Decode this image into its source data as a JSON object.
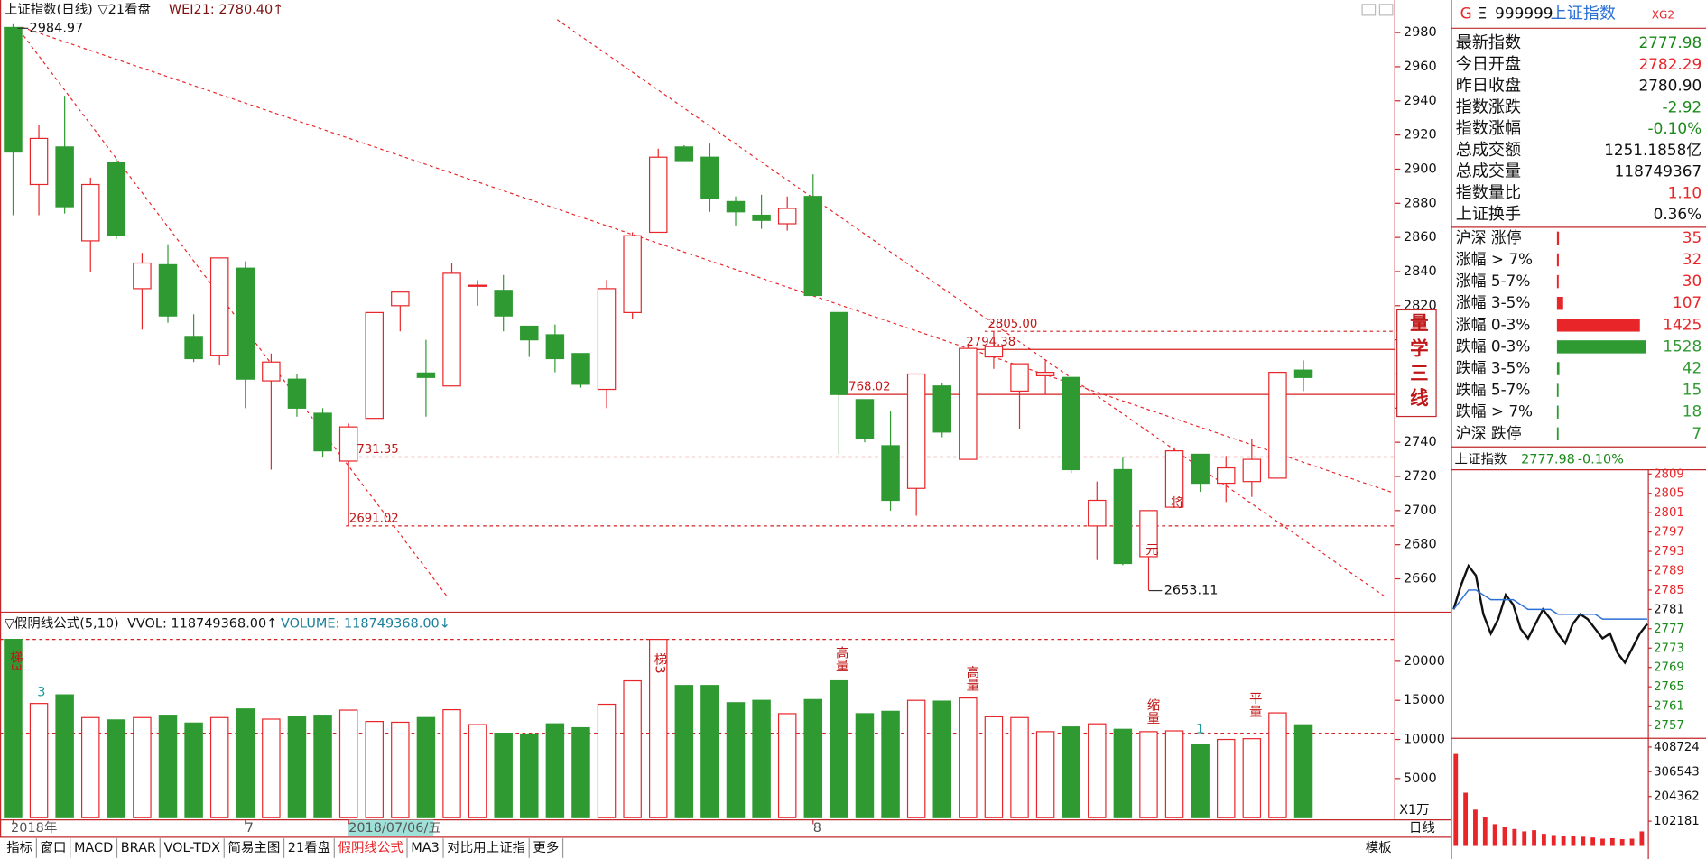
{
  "header": {
    "title": "上证指数(日线)",
    "period": "▽21看盘",
    "indicator": "WEI21: 2780.40↑"
  },
  "chart_data": [
    {
      "type": "candlestick",
      "categories": [
        "2018年",
        null,
        null,
        null,
        null,
        null,
        null,
        null,
        null,
        "7",
        null,
        null,
        null,
        "2018/07/06/五",
        null,
        null,
        null,
        null,
        null,
        null,
        null,
        null,
        null,
        null,
        null,
        null,
        null,
        null,
        null,
        null,
        null,
        "8",
        null,
        null,
        null,
        null,
        null,
        null,
        null,
        null,
        null,
        null,
        null,
        null,
        null,
        null,
        null,
        null,
        null,
        null,
        null
      ],
      "open": [
        2983,
        2891,
        2913,
        2858,
        2904,
        2830,
        2844,
        2802,
        2791,
        2842,
        2776,
        2777,
        2757,
        2729,
        2754,
        2820,
        2780.6,
        2773,
        2832,
        2829,
        2808,
        2803,
        2792,
        2771,
        2816,
        2863,
        2913,
        2907,
        2881,
        2873,
        2868,
        2884,
        2816,
        2765,
        2738,
        2713,
        2773,
        2730,
        2790,
        2770,
        2779,
        2778,
        2691,
        2724,
        2673,
        2702,
        2733,
        2716,
        2717,
        2719,
        2782.29
      ],
      "high": [
        2984.97,
        2926,
        2943,
        2895,
        2906,
        2851,
        2856,
        2815,
        2848,
        2846,
        2792,
        2780,
        2760,
        2751,
        2816,
        2828,
        2800,
        2845,
        2835,
        2838,
        2808,
        2809,
        2792,
        2835,
        2863,
        2912,
        2914,
        2915,
        2884,
        2885,
        2884,
        2897,
        2816,
        2765,
        2758,
        2780,
        2775,
        2797,
        2805,
        2786,
        2788,
        2778,
        2717,
        2731,
        2700,
        2737,
        2733,
        2732,
        2742,
        2781,
        2788
      ],
      "low": [
        2873,
        2873,
        2874,
        2840,
        2859,
        2806,
        2810,
        2787,
        2785,
        2760,
        2724,
        2755,
        2731,
        2691,
        2754,
        2805,
        2755,
        2773,
        2820,
        2805,
        2790,
        2781,
        2772,
        2760,
        2812,
        2863,
        2905,
        2875,
        2867,
        2865,
        2864,
        2826,
        2733,
        2740,
        2700,
        2697,
        2743,
        2730,
        2783,
        2748,
        2768,
        2722,
        2671,
        2668,
        2653.11,
        2702,
        2711,
        2705,
        2708,
        2719,
        2770
      ],
      "close": [
        2910,
        2918,
        2878,
        2891,
        2861,
        2845,
        2814,
        2789,
        2848,
        2777,
        2787,
        2760,
        2735,
        2749,
        2816,
        2828,
        2778,
        2839,
        2832,
        2814,
        2800,
        2789,
        2774,
        2830,
        2861,
        2907,
        2905,
        2883,
        2875,
        2870,
        2877,
        2826,
        2768,
        2742,
        2706,
        2780,
        2746,
        2795,
        2796,
        2786,
        2781,
        2724,
        2706,
        2669,
        2700,
        2735,
        2716,
        2725,
        2730,
        2781,
        2777.98
      ],
      "up_color": "#e8262a",
      "down_color": "#2f9a32",
      "ylim": [
        2648,
        2988
      ],
      "yticks": [
        2660,
        2680,
        2700,
        2720,
        2740,
        2760,
        2780,
        2800,
        2820,
        2840,
        2860,
        2880,
        2900,
        2920,
        2940,
        2960,
        2980
      ],
      "levels": [
        {
          "value": 2805,
          "label": "2805.00",
          "dashed": true
        },
        {
          "value": 2794.38,
          "label": "2794.38",
          "dashed": false
        },
        {
          "value": 2768.02,
          "label": "2768.02",
          "dashed": false
        },
        {
          "value": 2731.35,
          "label": "2731.35",
          "dashed": true
        },
        {
          "value": 2691.02,
          "label": "2691.02",
          "dashed": true
        }
      ],
      "annotations": [
        "元",
        "将"
      ],
      "box_label": "量学三线"
    },
    {
      "type": "bar",
      "title": "▽假阴线公式(5,10)",
      "vvol": "VVOL: 118749368.00↑",
      "volume": "VOLUME: 118749368.00↓",
      "values": [
        22800,
        14600,
        15700,
        12800,
        12500,
        12800,
        13100,
        12100,
        12800,
        13900,
        12600,
        12900,
        13100,
        13750,
        12300,
        12200,
        12800,
        13800,
        11900,
        10800,
        10700,
        12000,
        11500,
        14500,
        17500,
        22800,
        16900,
        16900,
        14700,
        15000,
        13300,
        15100,
        17500,
        13300,
        13600,
        15000,
        14900,
        15300,
        12900,
        12800,
        11000,
        11600,
        12000,
        11300,
        11000,
        11100,
        9400,
        10000,
        10100,
        13400,
        11875
      ],
      "ylim": [
        0,
        26000
      ],
      "yticks": [
        5000,
        10000,
        15000,
        20000
      ],
      "unit_label": "X1万",
      "hlines": [
        22800,
        10800
      ],
      "annotations": [
        "梯3",
        "3",
        "梯3",
        "高量",
        "高量",
        "缩量",
        "1",
        "平量"
      ]
    },
    {
      "type": "line",
      "title": "上证指数",
      "last": "2777.98",
      "change": "-0.10%",
      "series": [
        {
          "color": "#111111",
          "values": [
            2781,
            2786,
            2790,
            2788,
            2780,
            2776,
            2779,
            2784,
            2782,
            2777,
            2775,
            2778,
            2781,
            2779,
            2776,
            2774,
            2778,
            2780,
            2779,
            2777,
            2775,
            2776,
            2772,
            2770,
            2773,
            2776,
            2778
          ]
        },
        {
          "color": "#2a6fd6",
          "values": [
            2781,
            2783,
            2785,
            2785,
            2784,
            2783,
            2783,
            2783,
            2783,
            2782,
            2781,
            2781,
            2781,
            2781,
            2780,
            2780,
            2780,
            2780,
            2780,
            2780,
            2779,
            2779,
            2779,
            2779,
            2779,
            2779,
            2779
          ]
        }
      ],
      "ylim": [
        2753,
        2811
      ],
      "yticks": [
        2757,
        2761,
        2765,
        2769,
        2773,
        2777,
        2781,
        2785,
        2789,
        2793,
        2797,
        2801,
        2805,
        2809
      ]
    },
    {
      "type": "bar",
      "values": [
        380000,
        220000,
        150000,
        120000,
        90000,
        80000,
        70000,
        60000,
        65000,
        50000,
        45000,
        40000,
        42000,
        38000,
        35000,
        30000,
        32000,
        28000,
        30000,
        60000
      ],
      "color": "#e8262a",
      "ylim": [
        0,
        408724
      ],
      "yticks": [
        102181,
        204362,
        306543,
        408724
      ]
    }
  ],
  "quote": {
    "g": "G",
    "menu": "Ξ",
    "code": "999999",
    "name": "上证指数",
    "tag": "XG2",
    "rows": [
      {
        "label": "最新指数",
        "value": "2777.98",
        "color": "#1a8a1a"
      },
      {
        "label": "今日开盘",
        "value": "2782.29",
        "color": "#e8262a"
      },
      {
        "label": "昨日收盘",
        "value": "2780.90",
        "color": "#111111"
      },
      {
        "label": "指数涨跌",
        "value": "-2.92",
        "color": "#1a8a1a"
      },
      {
        "label": "指数涨幅",
        "value": "-0.10%",
        "color": "#1a8a1a"
      },
      {
        "label": "总成交额",
        "value": "1251.1858亿",
        "color": "#111111"
      },
      {
        "label": "总成交量",
        "value": "118749367",
        "color": "#111111"
      },
      {
        "label": "指数量比",
        "value": "1.10",
        "color": "#e8262a"
      },
      {
        "label": "上证换手",
        "value": "0.36%",
        "color": "#111111"
      }
    ]
  },
  "breadth": [
    {
      "label": "沪深 涨停",
      "value": 35,
      "color": "#e8262a"
    },
    {
      "label": "涨幅 > 7%",
      "value": 32,
      "color": "#e8262a"
    },
    {
      "label": "涨幅 5-7%",
      "value": 30,
      "color": "#e8262a"
    },
    {
      "label": "涨幅 3-5%",
      "value": 107,
      "color": "#e8262a"
    },
    {
      "label": "涨幅 0-3%",
      "value": 1425,
      "color": "#e8262a"
    },
    {
      "label": "跌幅 0-3%",
      "value": 1528,
      "color": "#2f9a32"
    },
    {
      "label": "跌幅 3-5%",
      "value": 42,
      "color": "#2f9a32"
    },
    {
      "label": "跌幅 5-7%",
      "value": 15,
      "color": "#2f9a32"
    },
    {
      "label": "跌幅 > 7%",
      "value": 18,
      "color": "#2f9a32"
    },
    {
      "label": "沪深 跌停",
      "value": 7,
      "color": "#2f9a32"
    }
  ],
  "tabs": {
    "items": [
      "指标",
      "窗口",
      "MACD",
      "BRAR",
      "VOL-TDX",
      "简易主图",
      "21看盘",
      "假阴线公式",
      "MA3",
      "对比用上证指",
      "更多"
    ],
    "active_index": 7
  },
  "footer": {
    "template": "模板",
    "period": "日线"
  }
}
